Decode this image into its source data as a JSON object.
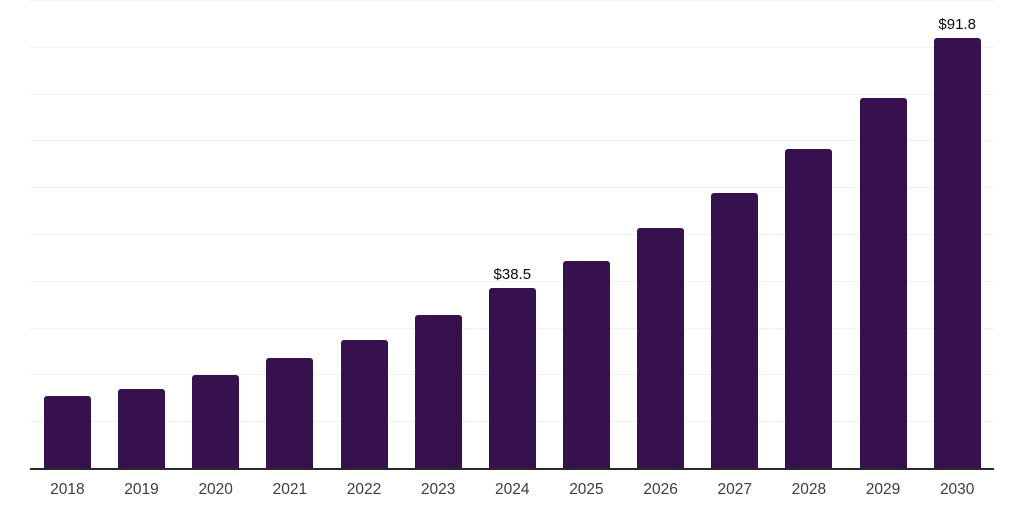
{
  "chart_data": {
    "type": "bar",
    "title": "",
    "xlabel": "",
    "ylabel": "",
    "categories": [
      "2018",
      "2019",
      "2020",
      "2021",
      "2022",
      "2023",
      "2024",
      "2025",
      "2026",
      "2027",
      "2028",
      "2029",
      "2030"
    ],
    "values": [
      15.4,
      16.9,
      19.9,
      23.5,
      27.4,
      32.7,
      38.5,
      44.2,
      51.3,
      58.8,
      68.2,
      79.1,
      91.8
    ],
    "data_labels": [
      {
        "index": 6,
        "text": "$38.5"
      },
      {
        "index": 12,
        "text": "$91.8"
      }
    ],
    "ylim": [
      0,
      100
    ],
    "gridline_step": 10,
    "grid": true,
    "legend": "none",
    "colors": {
      "bar": "#36114E",
      "gridline": "#f1f1f1",
      "axis_line": "#2a2a2a",
      "value_label": "#0a0a0a",
      "tick_label": "#3d3d3d",
      "background": "#ffffff"
    }
  }
}
